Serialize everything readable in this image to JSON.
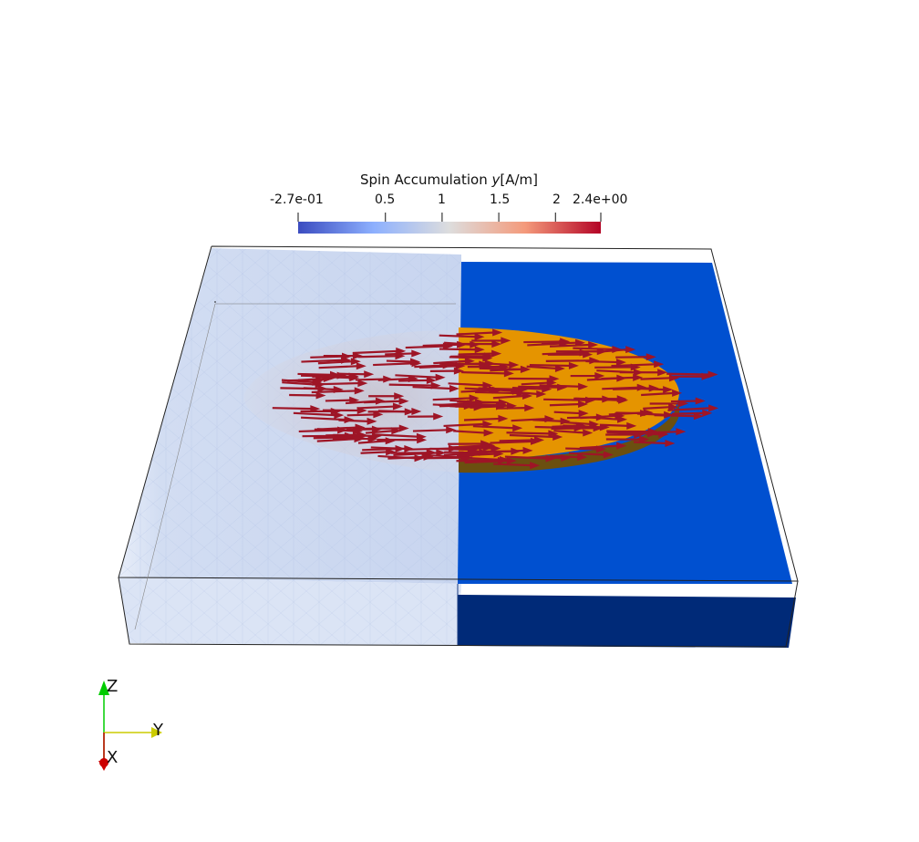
{
  "colorbar": {
    "title_prefix": "Spin Accumulation ",
    "title_var": "y",
    "title_unit": "[A/m]",
    "ticks": [
      "-2.7e-01",
      "0.5",
      "1",
      "1.5",
      "2",
      "2.4e+00"
    ],
    "range": [
      -0.27,
      2.4
    ],
    "colormap": [
      "#3b4cc0",
      "#8db0fe",
      "#dddddd",
      "#f49a7b",
      "#b40426"
    ]
  },
  "axes": {
    "z_label": "Z",
    "y_label": "Y",
    "x_label": "X",
    "z_color": "#00cc00",
    "y_color": "#cccc00",
    "x_color": "#cc0000"
  },
  "scene": {
    "clip_face_color": "#0050d0",
    "clip_side_color": "#002a78",
    "disk_color": "#e59400",
    "arrow_color": "#9e1526"
  }
}
